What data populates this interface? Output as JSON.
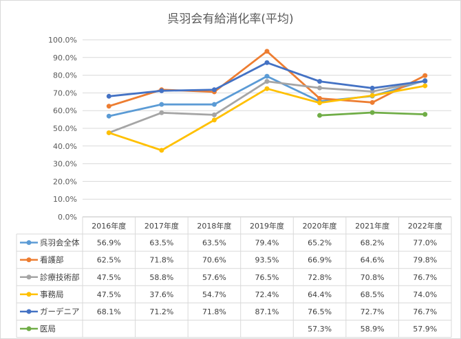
{
  "chart_data": {
    "type": "line",
    "title": "呉羽会有給消化率(平均)",
    "categories": [
      "2016年度",
      "2017年度",
      "2018年度",
      "2019年度",
      "2020年度",
      "2021年度",
      "2022年度"
    ],
    "ylim": [
      0,
      100
    ],
    "y_ticks": [
      "0.0%",
      "10.0%",
      "20.0%",
      "30.0%",
      "40.0%",
      "50.0%",
      "60.0%",
      "70.0%",
      "80.0%",
      "90.0%",
      "100.0%"
    ],
    "grid": true,
    "legend": "data-table",
    "series": [
      {
        "name": "呉羽会全体",
        "color": "#5b9bd5",
        "values": [
          56.9,
          63.5,
          63.5,
          79.4,
          65.2,
          68.2,
          77.0
        ],
        "labels": [
          "56.9%",
          "63.5%",
          "63.5%",
          "79.4%",
          "65.2%",
          "68.2%",
          "77.0%"
        ]
      },
      {
        "name": "看護部",
        "color": "#ed7d31",
        "values": [
          62.5,
          71.8,
          70.6,
          93.5,
          66.9,
          64.6,
          79.8
        ],
        "labels": [
          "62.5%",
          "71.8%",
          "70.6%",
          "93.5%",
          "66.9%",
          "64.6%",
          "79.8%"
        ]
      },
      {
        "name": "診療技術部",
        "color": "#a5a5a5",
        "values": [
          47.5,
          58.8,
          57.6,
          76.5,
          72.8,
          70.8,
          76.7
        ],
        "labels": [
          "47.5%",
          "58.8%",
          "57.6%",
          "76.5%",
          "72.8%",
          "70.8%",
          "76.7%"
        ]
      },
      {
        "name": "事務局",
        "color": "#ffc000",
        "values": [
          47.5,
          37.6,
          54.7,
          72.4,
          64.4,
          68.5,
          74.0
        ],
        "labels": [
          "47.5%",
          "37.6%",
          "54.7%",
          "72.4%",
          "64.4%",
          "68.5%",
          "74.0%"
        ]
      },
      {
        "name": "ガーデニア",
        "color": "#4472c4",
        "values": [
          68.1,
          71.2,
          71.8,
          87.1,
          76.5,
          72.7,
          76.7
        ],
        "labels": [
          "68.1%",
          "71.2%",
          "71.8%",
          "87.1%",
          "76.5%",
          "72.7%",
          "76.7%"
        ]
      },
      {
        "name": "医局",
        "color": "#70ad47",
        "values": [
          null,
          null,
          null,
          null,
          57.3,
          58.9,
          57.9
        ],
        "labels": [
          "",
          "",
          "",
          "",
          "57.3%",
          "58.9%",
          "57.9%"
        ]
      }
    ]
  }
}
